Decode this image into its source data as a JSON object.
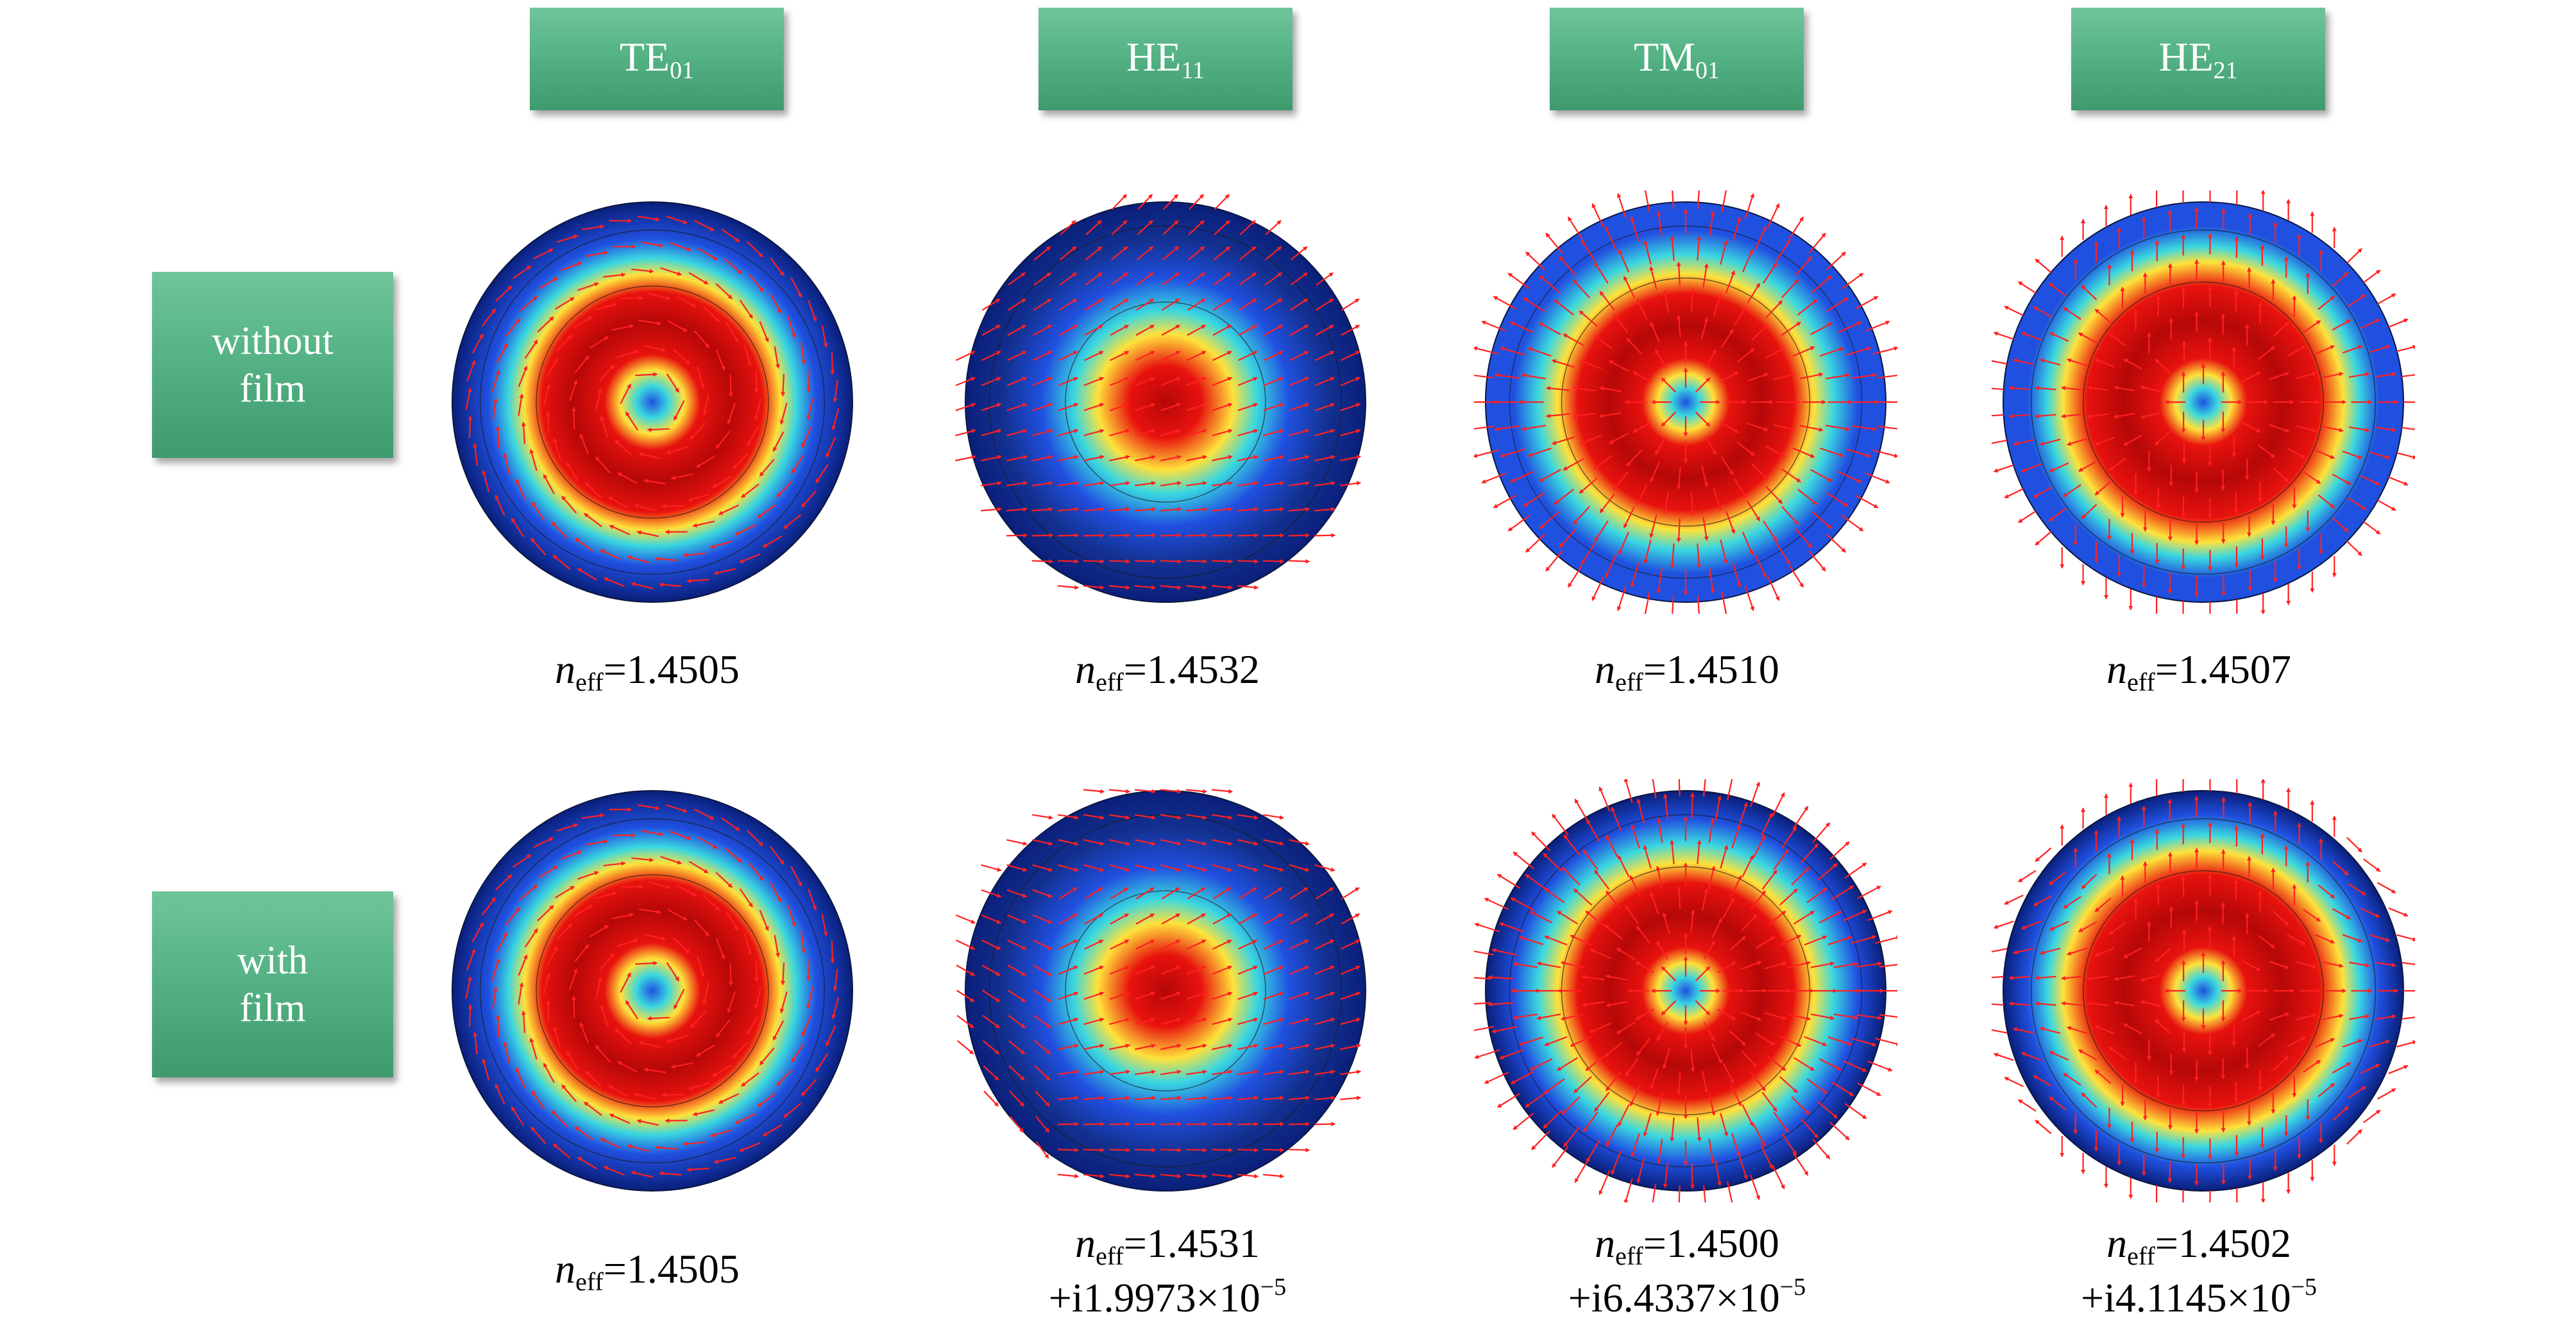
{
  "modes": [
    {
      "base": "TE",
      "sub": "01"
    },
    {
      "base": "HE",
      "sub": "11"
    },
    {
      "base": "TM",
      "sub": "01"
    },
    {
      "base": "HE",
      "sub": "21"
    }
  ],
  "rows": [
    {
      "line1": "without",
      "line2": "film"
    },
    {
      "line1": "with",
      "line2": "film"
    }
  ],
  "neff_symbol": "n",
  "neff_sub": "eff",
  "values": [
    [
      {
        "real": "=1.4505",
        "imag": ""
      },
      {
        "real": "=1.4532",
        "imag": ""
      },
      {
        "real": "=1.4510",
        "imag": ""
      },
      {
        "real": "=1.4507",
        "imag": ""
      }
    ],
    [
      {
        "real": "=1.4505",
        "imag": ""
      },
      {
        "real": "=1.4531",
        "imag": "+i1.9973×10",
        "exp": "−5"
      },
      {
        "real": "=1.4500",
        "imag": "+i6.4337×10",
        "exp": "−5"
      },
      {
        "real": "=1.4502",
        "imag": "+i4.1145×10",
        "exp": "−5"
      }
    ]
  ],
  "colors": {
    "header_green": "#55b385",
    "arrow_red": "#ff2020",
    "field_dark_blue": "#0a1f7a",
    "field_blue": "#2050e0",
    "field_cyan": "#3ad7e0",
    "field_yellow": "#ffe23a",
    "field_red": "#e8120e",
    "field_dark_red": "#b50808"
  },
  "plot_types": [
    [
      "te01",
      "he11",
      "tm01",
      "he21"
    ],
    [
      "te01",
      "he11-film",
      "tm01-film",
      "he21-film"
    ]
  ]
}
